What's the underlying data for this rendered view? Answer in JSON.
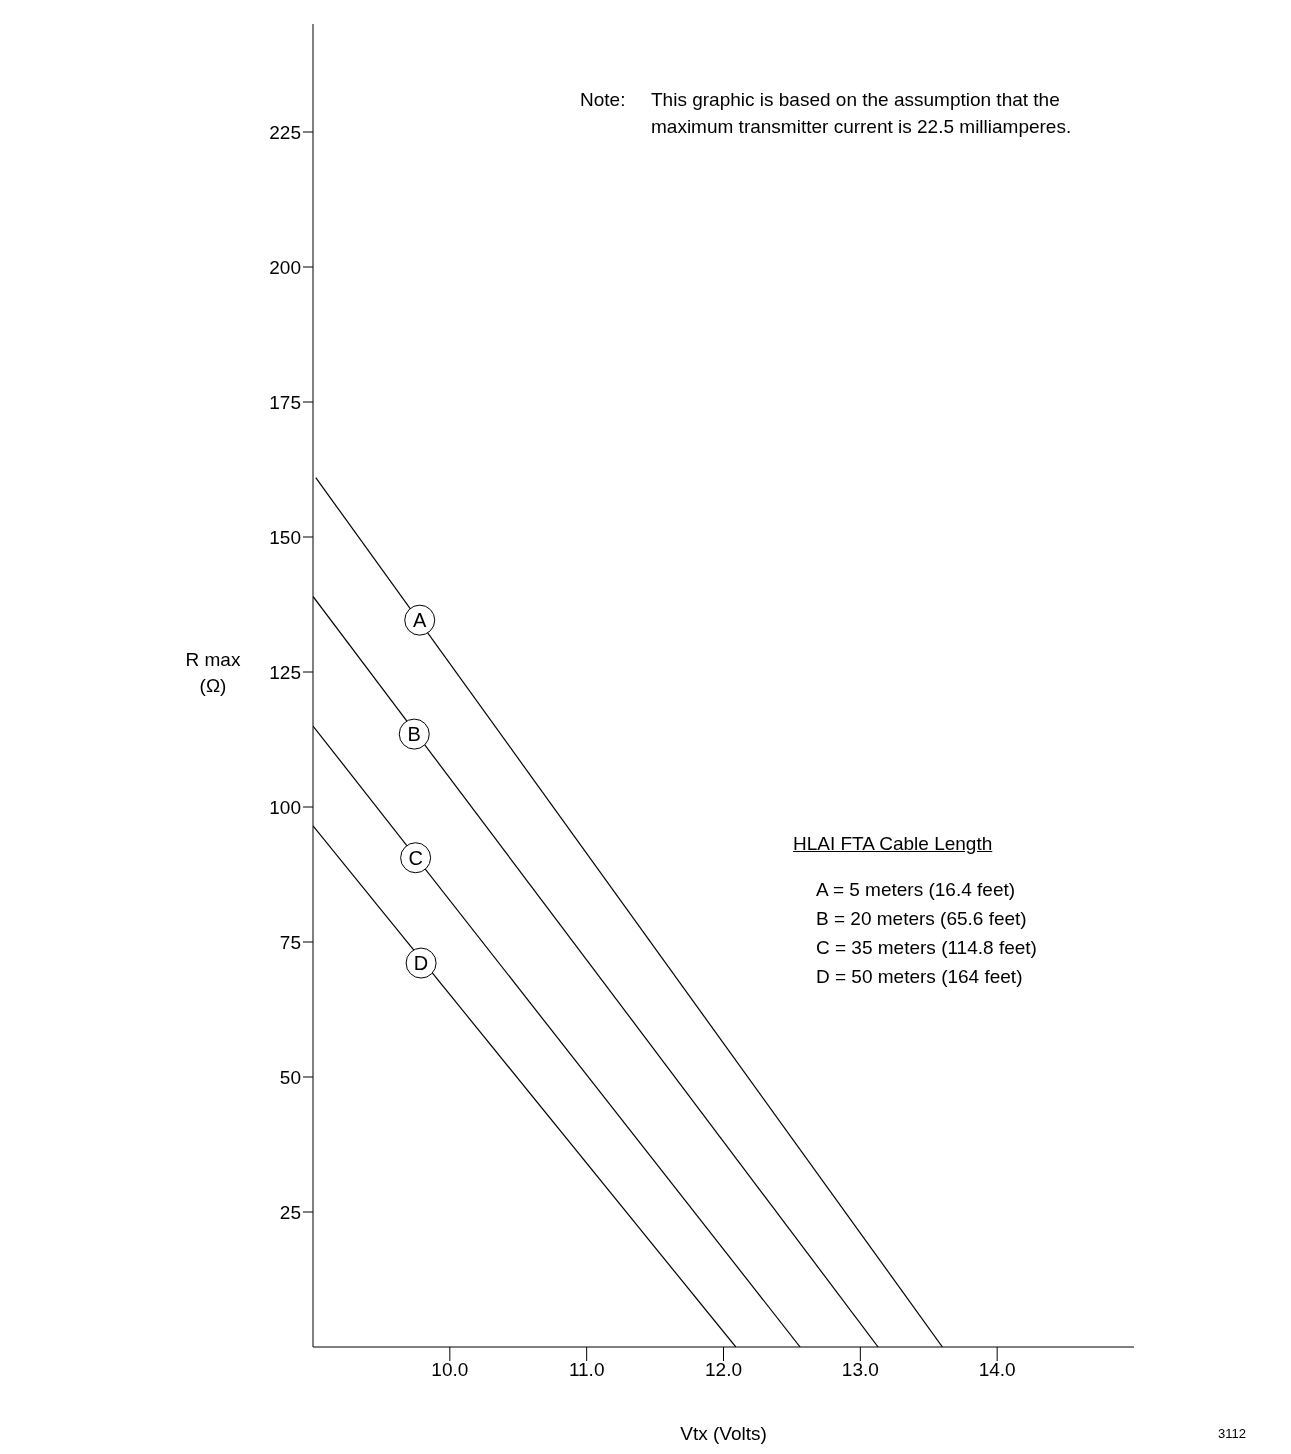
{
  "chart_data": {
    "type": "line",
    "xlabel": "Vtx     (Volts)",
    "ylabel": "R max\n(Ω)",
    "xlim": [
      9,
      15
    ],
    "xticks": [
      {
        "value": 10,
        "label": "10.0"
      },
      {
        "value": 11,
        "label": "11.0"
      },
      {
        "value": 12,
        "label": "12.0"
      },
      {
        "value": 13,
        "label": "13.0"
      },
      {
        "value": 14,
        "label": "14.0"
      }
    ],
    "ylim": [
      0,
      245
    ],
    "yticks": [
      25,
      50,
      75,
      100,
      125,
      150,
      175,
      200,
      225
    ],
    "series": [
      {
        "color": "#000000",
        "x": [
          9.02,
          13.6
        ],
        "values": [
          161,
          0
        ]
      },
      {
        "color": "#000000",
        "x": [
          9.0,
          13.13
        ],
        "values": [
          139,
          0
        ]
      },
      {
        "color": "#000000",
        "x": [
          9.0,
          12.56
        ],
        "values": [
          115,
          0
        ]
      },
      {
        "color": "#000000",
        "x": [
          9.0,
          12.09
        ],
        "values": [
          96.5,
          0
        ]
      }
    ],
    "annotations": [
      {
        "text": "A",
        "x": 9.78,
        "y": 134.6
      },
      {
        "text": "B",
        "x": 9.74,
        "y": 113.5
      },
      {
        "text": "C",
        "x": 9.75,
        "y": 90.6
      },
      {
        "text": "D",
        "x": 9.79,
        "y": 71.1
      },
      "Note:",
      "This graphic is based on the assumption that the maximum transmitter current is 22.5 milliamperes.",
      "HLAI FTA Cable Length",
      "A = 5 meters (16.4 feet)",
      "B = 20 meters (65.6 feet)",
      "C = 35 meters (114.8 feet)",
      "D = 50 meters (164 feet)",
      "3112"
    ],
    "grid": false,
    "marker": "none",
    "line_style": "solid"
  }
}
